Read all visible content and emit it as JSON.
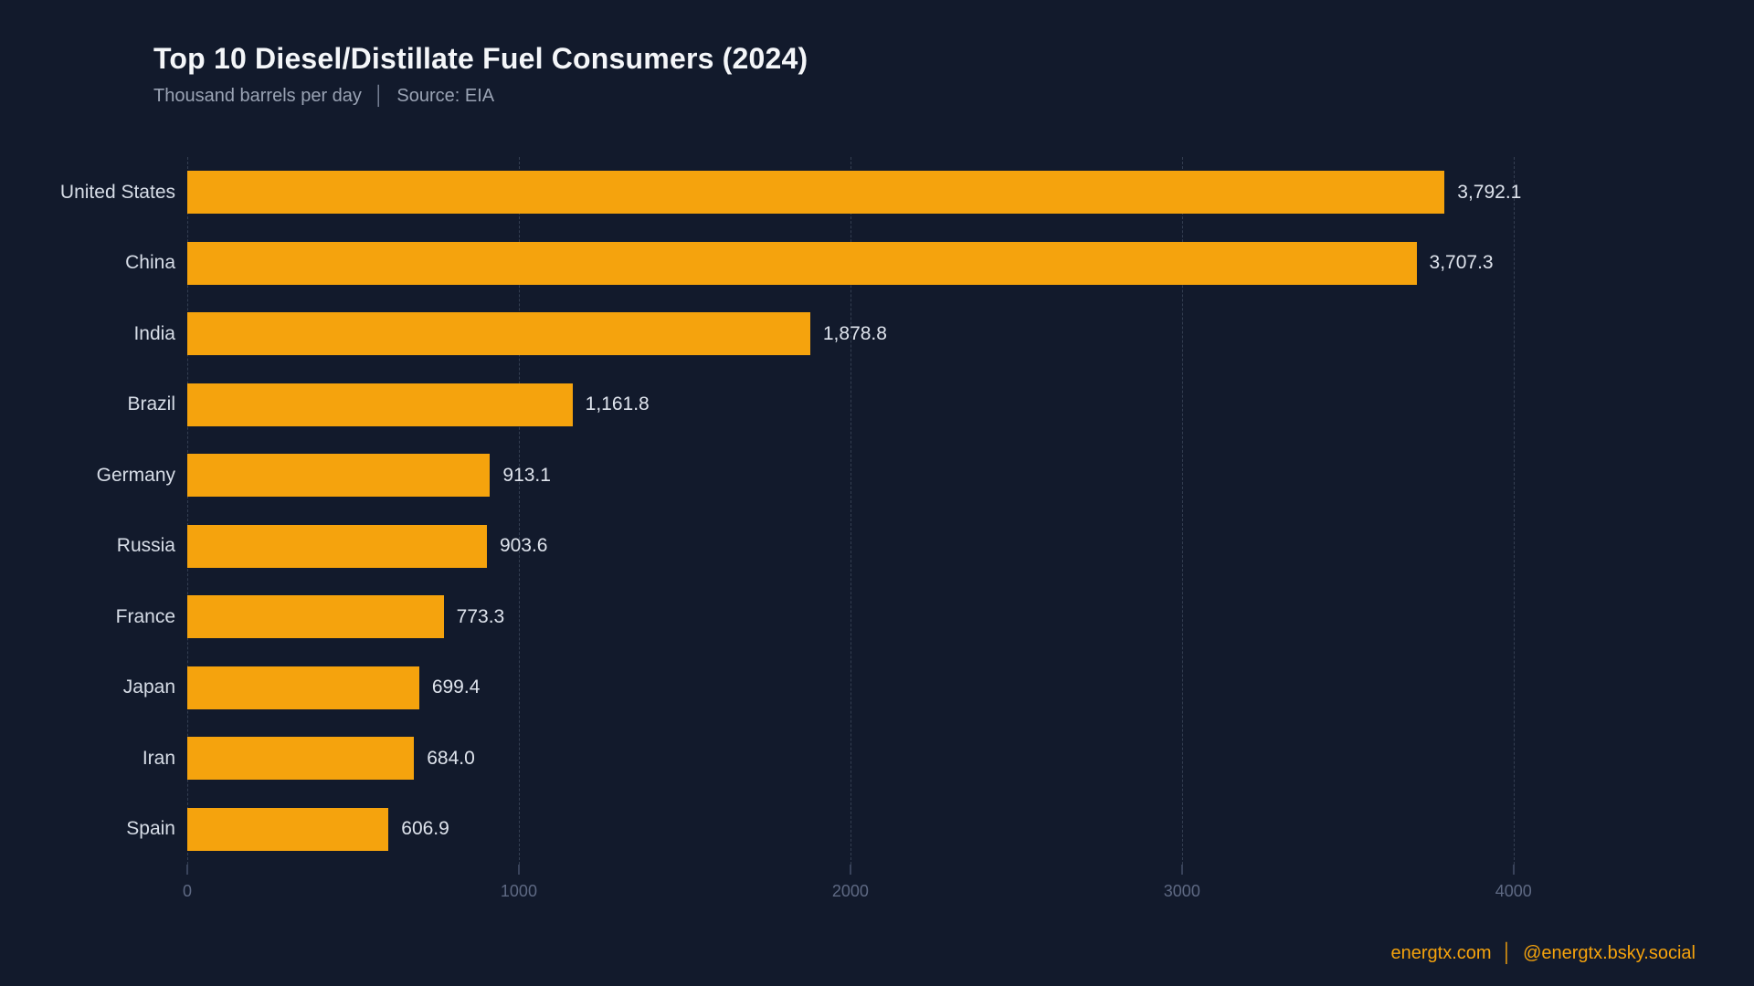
{
  "header": {
    "title": "Top 10 Diesel/Distillate Fuel Consumers (2024)",
    "subtitle_unit": "Thousand barrels per day",
    "separator": "│",
    "subtitle_source": "Source: EIA"
  },
  "chart_data": {
    "type": "bar",
    "orientation": "horizontal",
    "title": "Top 10 Diesel/Distillate Fuel Consumers (2024)",
    "xlabel": "Thousand barrels per day",
    "source": "Source: EIA",
    "categories": [
      "United States",
      "China",
      "India",
      "Brazil",
      "Germany",
      "Russia",
      "France",
      "Japan",
      "Iran",
      "Spain"
    ],
    "values": [
      3792.1,
      3707.3,
      1878.8,
      1161.8,
      913.1,
      903.6,
      773.3,
      699.4,
      684.0,
      606.9
    ],
    "value_labels": [
      "3,792.1",
      "3,707.3",
      "1,878.8",
      "1,161.8",
      "913.1",
      "903.6",
      "773.3",
      "699.4",
      "684.0",
      "606.9"
    ],
    "x_ticks": [
      0,
      1000,
      2000,
      3000,
      4000
    ],
    "x_tick_labels": [
      "0",
      "1000",
      "2000",
      "3000",
      "4000"
    ],
    "xlim": [
      0,
      4560
    ],
    "grid": "vertical-dashed",
    "legend": "none",
    "bar_color": "#F5A30D",
    "background_color": "#121A2C"
  },
  "footer": {
    "website": "energtx.com",
    "separator": "│",
    "social": "@energtx.bsky.social"
  }
}
